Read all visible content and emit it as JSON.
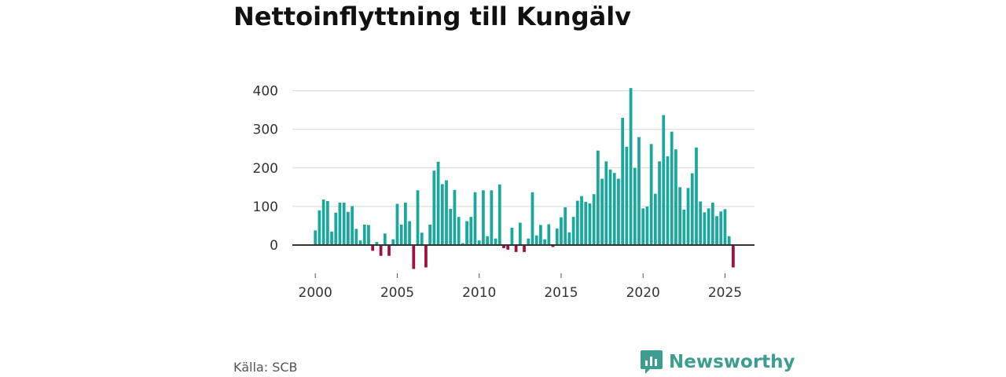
{
  "title": "Nettoinflyttning till Kungälv",
  "source": "Källa: SCB",
  "brand": "Newsworthy",
  "colors": {
    "positive": "#1aa89c",
    "negative": "#a0103e",
    "grid": "#d6d6d6",
    "baseline": "#333333",
    "brand": "#3d9e90"
  },
  "chart_data": {
    "type": "bar",
    "title": "Nettoinflyttning till Kungälv",
    "xlabel": "",
    "ylabel": "",
    "x_start": 2000.0,
    "x_step": 0.25,
    "xlim": [
      1998.6,
      2026.8
    ],
    "ylim": [
      -60,
      420
    ],
    "yticks": [
      0,
      100,
      200,
      300,
      400
    ],
    "xticks": [
      2000,
      2005,
      2010,
      2015,
      2020,
      2025
    ],
    "grid": true,
    "values": [
      38,
      90,
      118,
      114,
      35,
      84,
      110,
      110,
      86,
      101,
      42,
      12,
      53,
      52,
      -15,
      8,
      -28,
      30,
      -28,
      15,
      107,
      53,
      110,
      62,
      -62,
      142,
      32,
      -58,
      53,
      193,
      216,
      158,
      168,
      94,
      143,
      73,
      5,
      62,
      73,
      137,
      12,
      142,
      23,
      142,
      17,
      157,
      -8,
      -12,
      45,
      -18,
      58,
      -18,
      17,
      137,
      25,
      52,
      15,
      54,
      -5,
      43,
      72,
      98,
      33,
      73,
      115,
      127,
      112,
      108,
      132,
      245,
      172,
      217,
      196,
      187,
      172,
      330,
      255,
      407,
      200,
      280,
      95,
      100,
      262,
      133,
      217,
      337,
      230,
      294,
      248,
      150,
      92,
      148,
      186,
      253,
      113,
      85,
      95,
      110,
      75,
      87,
      93,
      23,
      -58
    ]
  }
}
